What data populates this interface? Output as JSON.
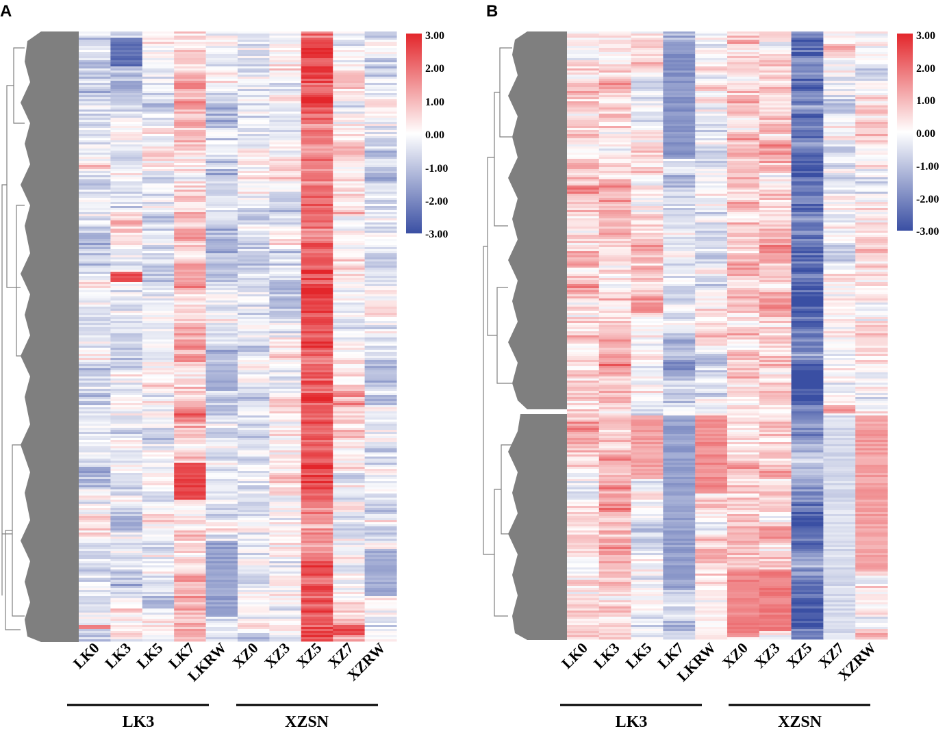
{
  "chart_data": [
    {
      "type": "heatmap",
      "panel_label": "A",
      "columns": [
        "LK0",
        "LK3",
        "LK5",
        "LK7",
        "LKRW",
        "XZ0",
        "XZ3",
        "XZ5",
        "XZ7",
        "XZRW"
      ],
      "groups": [
        {
          "name": "LK3",
          "columns": [
            "LK0",
            "LK3",
            "LK5",
            "LK7",
            "LKRW"
          ]
        },
        {
          "name": "XZSN",
          "columns": [
            "XZ0",
            "XZ3",
            "XZ5",
            "XZ7",
            "XZRW"
          ]
        }
      ],
      "colorbar": {
        "range": [
          -3.0,
          3.0
        ],
        "ticks": [
          "3.00",
          "2.00",
          "1.00",
          "0.00",
          "-1.00",
          "-2.00",
          "-3.00"
        ],
        "colors": {
          "low": "#3a4fa3",
          "mid": "#ffffff",
          "high": "#e3262b"
        }
      },
      "column_mean_levels": [
        -0.45,
        -0.25,
        -0.15,
        0.9,
        -0.55,
        -0.45,
        -0.25,
        2.0,
        0.1,
        -0.5
      ]
    },
    {
      "type": "heatmap",
      "panel_label": "B",
      "columns": [
        "LK0",
        "LK3",
        "LK5",
        "LK7",
        "LKRW",
        "XZ0",
        "XZ3",
        "XZ5",
        "XZ7",
        "XZRW"
      ],
      "groups": [
        {
          "name": "LK3",
          "columns": [
            "LK0",
            "LK3",
            "LK5",
            "LK7",
            "LKRW"
          ]
        },
        {
          "name": "XZSN",
          "columns": [
            "XZ0",
            "XZ3",
            "XZ5",
            "XZ7",
            "XZRW"
          ]
        }
      ],
      "colorbar": {
        "range": [
          -3.0,
          3.0
        ],
        "ticks": [
          "3.00",
          "2.00",
          "1.00",
          "0.00",
          "-1.00",
          "-2.00",
          "-3.00"
        ],
        "colors": {
          "low": "#3a4fa3",
          "mid": "#ffffff",
          "high": "#e3262b"
        }
      },
      "column_mean_levels": [
        0.6,
        0.6,
        0.2,
        -0.9,
        -0.1,
        0.8,
        0.8,
        -2.3,
        0.2,
        0.3
      ]
    }
  ]
}
